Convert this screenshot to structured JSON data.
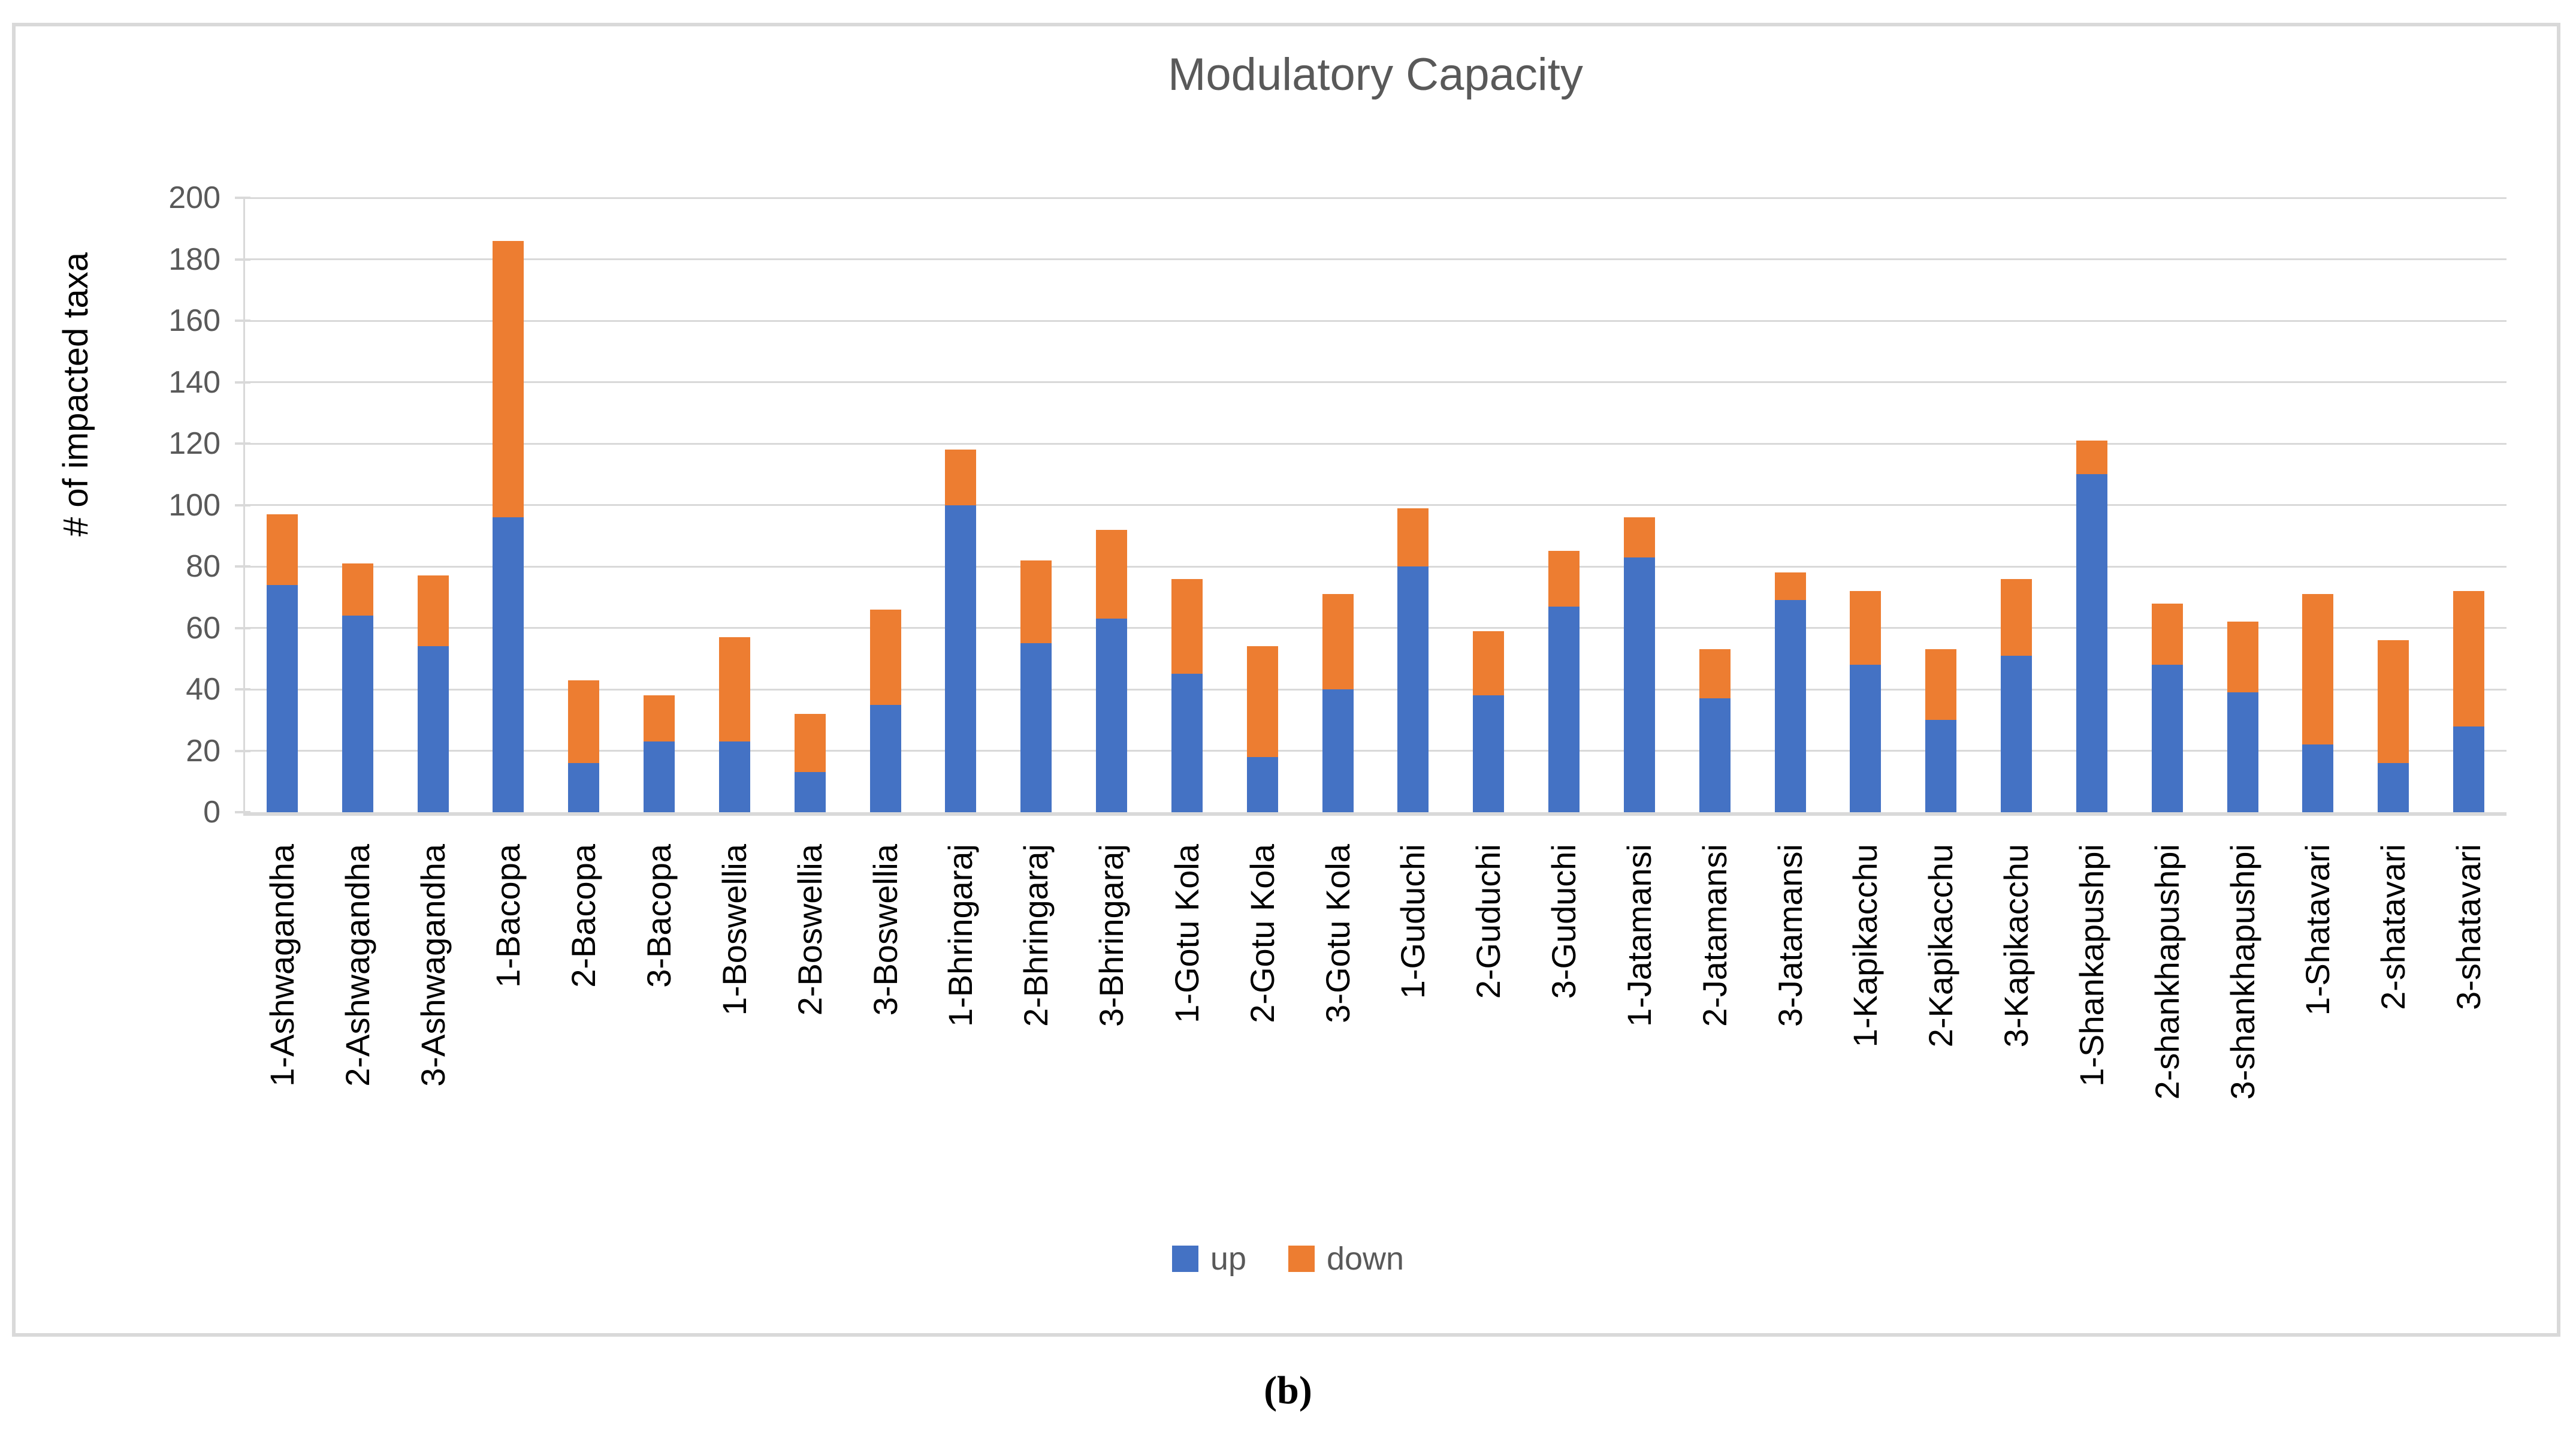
{
  "figure": {
    "caption": "(b)"
  },
  "chart_data": {
    "type": "bar",
    "stacked": true,
    "title": "Modulatory Capacity",
    "xlabel": "",
    "ylabel": "# of impacted taxa",
    "ylim": [
      0,
      200
    ],
    "ytick_step": 20,
    "grid": true,
    "legend_position": "bottom-center",
    "categories": [
      "1-Ashwagandha",
      "2-Ashwagandha",
      "3-Ashwagandha",
      "1-Bacopa",
      "2-Bacopa",
      "3-Bacopa",
      "1-Boswellia",
      "2-Boswellia",
      "3-Boswellia",
      "1-Bhringaraj",
      "2-Bhringaraj",
      "3-Bhringaraj",
      "1-Gotu Kola",
      "2-Gotu Kola",
      "3-Gotu Kola",
      "1-Guduchi",
      "2-Guduchi",
      "3-Guduchi",
      "1-Jatamansi",
      "2-Jatamansi",
      "3-Jatamansi",
      "1-Kapikacchu",
      "2-Kapikacchu",
      "3-Kapikacchu",
      "1-Shankapushpi",
      "2-shankhapushpi",
      "3-shankhapushpi",
      "1-Shatavari",
      "2-shatavari",
      "3-shatavari"
    ],
    "series": [
      {
        "name": "up",
        "color": "#4472C4",
        "values": [
          74,
          64,
          54,
          96,
          16,
          23,
          23,
          13,
          35,
          100,
          55,
          63,
          45,
          18,
          40,
          80,
          38,
          67,
          83,
          37,
          69,
          48,
          30,
          51,
          110,
          48,
          39,
          22,
          16,
          28
        ]
      },
      {
        "name": "down",
        "color": "#ED7D31",
        "values": [
          23,
          17,
          23,
          90,
          27,
          15,
          34,
          19,
          31,
          18,
          27,
          29,
          31,
          36,
          31,
          19,
          21,
          18,
          13,
          16,
          9,
          24,
          23,
          25,
          11,
          20,
          23,
          49,
          40,
          44
        ]
      }
    ],
    "totals": [
      97,
      81,
      77,
      186,
      43,
      38,
      57,
      32,
      66,
      118,
      82,
      92,
      76,
      54,
      71,
      99,
      59,
      85,
      96,
      53,
      78,
      72,
      53,
      76,
      121,
      68,
      62,
      71,
      56,
      72
    ]
  },
  "legend": {
    "items": [
      {
        "label": "up",
        "color": "#4472C4"
      },
      {
        "label": "down",
        "color": "#ED7D31"
      }
    ]
  },
  "colors": {
    "grid": "#D9D9D9",
    "border": "#D9D9D9",
    "axis_text": "#595959",
    "title_text": "#595959",
    "category_text": "#000000",
    "background": "#FFFFFF"
  }
}
